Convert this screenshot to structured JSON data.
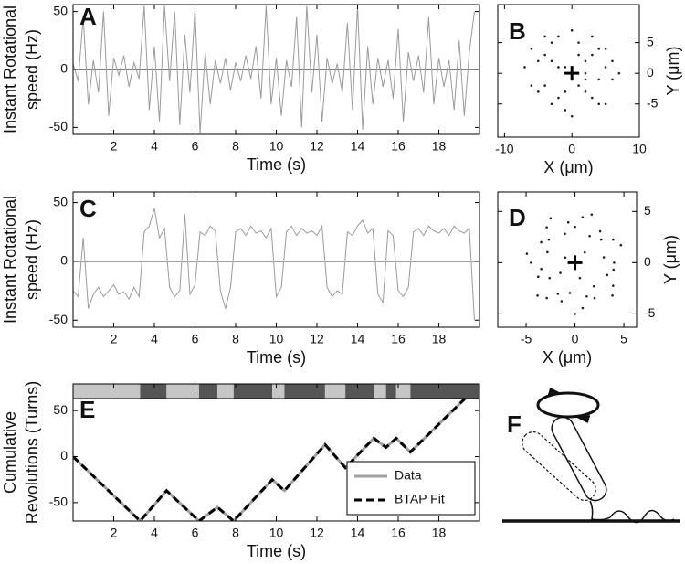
{
  "chart_data": [
    {
      "type": "line",
      "label": "A",
      "xlabel": "Time (s)",
      "ylabel": [
        "Instant Rotational",
        "speed (Hz)"
      ],
      "xlim": [
        0,
        20
      ],
      "ylim": [
        -56,
        56
      ],
      "xticks": [
        2,
        4,
        6,
        8,
        10,
        12,
        14,
        16,
        18
      ],
      "yticks": [
        -50,
        0,
        50
      ],
      "y_axis_side": "left",
      "zero_line": true,
      "color": "#9a9a9a",
      "x": [
        0,
        0.25,
        0.5,
        0.75,
        1,
        1.25,
        1.5,
        1.75,
        2,
        2.25,
        2.5,
        2.75,
        3,
        3.25,
        3.5,
        3.75,
        4,
        4.25,
        4.5,
        4.75,
        5,
        5.25,
        5.5,
        5.75,
        6,
        6.25,
        6.5,
        6.75,
        7,
        7.25,
        7.5,
        7.75,
        8,
        8.25,
        8.5,
        8.75,
        9,
        9.25,
        9.5,
        9.75,
        10,
        10.25,
        10.5,
        10.75,
        11,
        11.25,
        11.5,
        11.75,
        12,
        12.25,
        12.5,
        12.75,
        13,
        13.25,
        13.5,
        13.75,
        14,
        14.25,
        14.5,
        14.75,
        15,
        15.25,
        15.5,
        15.75,
        16,
        16.25,
        16.5,
        16.75,
        17,
        17.25,
        17.5,
        17.75,
        18,
        18.25,
        18.5,
        18.75,
        19,
        19.25,
        19.5,
        19.75
      ],
      "values": [
        5,
        -10,
        45,
        -30,
        8,
        -20,
        50,
        -40,
        10,
        -5,
        12,
        -15,
        6,
        -8,
        55,
        -35,
        20,
        -45,
        55,
        -10,
        50,
        -48,
        30,
        -20,
        52,
        -55,
        15,
        -30,
        8,
        -12,
        10,
        -18,
        6,
        -10,
        12,
        -8,
        20,
        -25,
        55,
        -30,
        10,
        -40,
        8,
        -15,
        45,
        -50,
        55,
        -20,
        30,
        -45,
        10,
        -12,
        5,
        -20,
        40,
        -35,
        55,
        -52,
        20,
        -30,
        10,
        -15,
        8,
        -25,
        35,
        -45,
        15,
        -10,
        12,
        -20,
        45,
        -30,
        10,
        -15,
        8,
        -35,
        25,
        -40,
        15,
        50
      ]
    },
    {
      "type": "scatter",
      "label": "B",
      "xlabel": "X (μm)",
      "ylabel": [
        "Y (μm)"
      ],
      "xlim": [
        -11,
        10
      ],
      "ylim": [
        -10.4,
        11.2
      ],
      "xticks": [
        -10,
        0,
        10
      ],
      "yticks": [
        -5,
        0,
        5
      ],
      "y_axis_side": "right",
      "color": "#222",
      "x": [
        -3,
        2,
        5,
        -6,
        1,
        -1,
        4,
        -4,
        0,
        3,
        -2,
        6,
        -5,
        2,
        -3,
        1,
        -7,
        5,
        -1,
        3,
        0,
        -4,
        4,
        -2,
        2,
        -6,
        6,
        -3,
        1,
        -1,
        3,
        -5,
        0,
        4,
        -2,
        5,
        -4,
        2,
        -1,
        7
      ],
      "values": [
        2,
        -3,
        1,
        -2,
        5,
        -6,
        4,
        3,
        -1,
        -4,
        6,
        -1,
        2,
        0,
        -5,
        3,
        1,
        4,
        -3,
        6,
        -7,
        -2,
        -5,
        1,
        -1,
        4,
        2,
        5,
        -2,
        0,
        3,
        -3,
        7,
        -1,
        -4,
        -5,
        6,
        2,
        1,
        0
      ]
    },
    {
      "type": "line",
      "label": "C",
      "xlabel": "Time (s)",
      "ylabel": [
        "Instant Rotational",
        "speed (Hz)"
      ],
      "xlim": [
        0,
        20
      ],
      "ylim": [
        -56,
        59
      ],
      "xticks": [
        2,
        4,
        6,
        8,
        10,
        12,
        14,
        16,
        18
      ],
      "yticks": [
        -50,
        0,
        50
      ],
      "y_axis_side": "left",
      "zero_line": true,
      "color": "#9a9a9a",
      "x": [
        0,
        0.25,
        0.5,
        0.75,
        1,
        1.25,
        1.5,
        1.75,
        2,
        2.25,
        2.5,
        2.75,
        3,
        3.25,
        3.5,
        3.75,
        4,
        4.25,
        4.5,
        4.75,
        5,
        5.25,
        5.5,
        5.75,
        6,
        6.25,
        6.5,
        6.75,
        7,
        7.25,
        7.5,
        7.75,
        8,
        8.25,
        8.5,
        8.75,
        9,
        9.25,
        9.5,
        9.75,
        10,
        10.25,
        10.5,
        10.75,
        11,
        11.25,
        11.5,
        11.75,
        12,
        12.25,
        12.5,
        12.75,
        13,
        13.25,
        13.5,
        13.75,
        14,
        14.25,
        14.5,
        14.75,
        15,
        15.25,
        15.5,
        15.75,
        16,
        16.25,
        16.5,
        16.75,
        17,
        17.25,
        17.5,
        17.75,
        18,
        18.25,
        18.5,
        18.75,
        19,
        19.25,
        19.5,
        19.75
      ],
      "values": [
        -25,
        -30,
        20,
        -40,
        -28,
        -22,
        -30,
        -25,
        -20,
        -28,
        -26,
        -32,
        -22,
        -30,
        25,
        30,
        45,
        20,
        28,
        -22,
        -30,
        -25,
        40,
        -28,
        -20,
        25,
        22,
        30,
        26,
        -25,
        -40,
        -22,
        25,
        28,
        22,
        30,
        24,
        26,
        20,
        28,
        -30,
        -22,
        25,
        30,
        22,
        28,
        24,
        26,
        22,
        30,
        -22,
        -30,
        -25,
        -28,
        25,
        22,
        30,
        35,
        24,
        28,
        -28,
        -35,
        26,
        22,
        -25,
        -30,
        -22,
        25,
        28,
        22,
        30,
        26,
        24,
        28,
        22,
        30,
        26,
        24,
        28,
        -50
      ]
    },
    {
      "type": "scatter",
      "label": "D",
      "xlabel": "X (μm)",
      "ylabel": [
        "Y (μm)"
      ],
      "xlim": [
        -7.9,
        6.3
      ],
      "ylim": [
        -6.3,
        6.9
      ],
      "xticks": [
        -5,
        0,
        5
      ],
      "yticks": [
        -5,
        0,
        5
      ],
      "y_axis_side": "right",
      "color": "#222",
      "x": [
        4,
        2.95,
        4.7,
        3.9,
        2.68,
        2.57,
        1.5,
        1.71,
        0.78,
        0,
        -0.69,
        -1.03,
        -2.5,
        -2.89,
        -2.68,
        -3.46,
        -2.82,
        -4.92,
        -4.5,
        -3.45,
        -3.76,
        -2.6,
        -3.83,
        -2.89,
        -1.75,
        -1.37,
        -0.52,
        0,
        0.78,
        1.2,
        2,
        1.93,
        3.83,
        3.9,
        3.29,
        3.94,
        1,
        -1,
        0.5,
        -1.5
      ],
      "values": [
        0,
        0.52,
        1.71,
        2.25,
        2.25,
        3.06,
        2.6,
        4.7,
        4.43,
        3.5,
        3.94,
        2.82,
        4.33,
        3.45,
        2.25,
        2,
        1.03,
        0.87,
        0,
        -0.61,
        -1.37,
        -1.5,
        -3.21,
        -3.45,
        -3.03,
        -3.76,
        -2.95,
        -5,
        -4.43,
        -3.29,
        -3.46,
        -2.3,
        -3.21,
        -2.25,
        -1.2,
        -0.69,
        1,
        0.5,
        -1.5,
        -1
      ]
    },
    {
      "type": "line",
      "label": "E",
      "xlabel": "Time (s)",
      "ylabel": [
        "Cumulative",
        "Revolutions (Turns)"
      ],
      "xlim": [
        0,
        20
      ],
      "ylim": [
        -70,
        79
      ],
      "xticks": [
        2,
        4,
        6,
        8,
        10,
        12,
        14,
        16,
        18
      ],
      "yticks": [
        -50,
        0,
        50
      ],
      "y_axis_side": "left",
      "state_bar": true,
      "legend": "lower right",
      "x": [
        0,
        3.3,
        4.6,
        6.2,
        7.1,
        7.9,
        9.8,
        10.4,
        12.4,
        13.4,
        14.8,
        15.4,
        15.9,
        16.6,
        19.7
      ],
      "series": [
        {
          "name": "Data",
          "color": "#a0a0a0",
          "dashed": false,
          "values": [
            0,
            -70,
            -37,
            -70,
            -55,
            -70,
            -25,
            -37,
            13,
            -12,
            20,
            10,
            20,
            5,
            72
          ]
        },
        {
          "name": "BTAP Fit",
          "color": "#000000",
          "dashed": true,
          "values": [
            0,
            -70,
            -37,
            -70,
            -55,
            -70,
            -25,
            -37,
            13,
            -12,
            20,
            10,
            20,
            5,
            72
          ]
        }
      ]
    }
  ],
  "panel_f": {
    "label": "F"
  }
}
